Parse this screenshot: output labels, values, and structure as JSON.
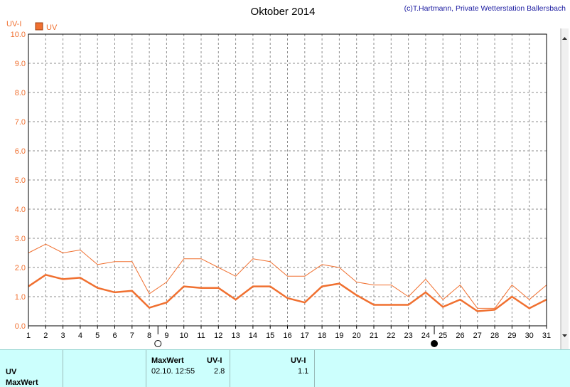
{
  "chart_data": {
    "type": "line",
    "title": "Oktober 2014",
    "copyright": "(c)T.Hartmann, Private Wetterstation Ballersbach",
    "ylabel": "UV-I",
    "legend": "UV",
    "legend_position": "top-left",
    "grid": true,
    "ylim": [
      0,
      10
    ],
    "yticks": [
      "0.0",
      "1.0",
      "2.0",
      "3.0",
      "4.0",
      "5.0",
      "6.0",
      "7.0",
      "8.0",
      "9.0",
      "10.0"
    ],
    "x": [
      1,
      2,
      3,
      4,
      5,
      6,
      7,
      8,
      9,
      10,
      11,
      12,
      13,
      14,
      15,
      16,
      17,
      18,
      19,
      20,
      21,
      22,
      23,
      24,
      25,
      26,
      27,
      28,
      29,
      30,
      31
    ],
    "series": [
      {
        "name": "UV",
        "values": [
          1.35,
          1.75,
          1.6,
          1.65,
          1.3,
          1.15,
          1.2,
          0.62,
          0.8,
          1.35,
          1.3,
          1.3,
          0.9,
          1.35,
          1.35,
          0.95,
          0.8,
          1.35,
          1.45,
          1.05,
          0.72,
          0.72,
          0.72,
          1.15,
          0.65,
          0.9,
          0.5,
          0.55,
          1.0,
          0.6,
          0.9
        ]
      },
      {
        "name": "MaxWert",
        "values": [
          2.5,
          2.8,
          2.5,
          2.6,
          2.1,
          2.2,
          2.2,
          1.1,
          1.5,
          2.3,
          2.3,
          2.0,
          1.7,
          2.3,
          2.2,
          1.7,
          1.7,
          2.1,
          2.0,
          1.5,
          1.4,
          1.4,
          1.0,
          1.6,
          0.9,
          1.4,
          0.6,
          0.6,
          1.4,
          0.9,
          1.4
        ]
      }
    ],
    "moon_phases": [
      {
        "day": 8,
        "phase": "full"
      },
      {
        "day": 24,
        "phase": "new"
      }
    ],
    "colors": {
      "series": "#f07030",
      "axis_text": "#f07030",
      "grid": "#8c8c8c"
    }
  },
  "footer": {
    "row1_label": "UV",
    "row2_label": "MaxWert",
    "col_max_header": "MaxWert",
    "col_unit_header": "UV-I",
    "max_datetime": "02.10.  12:55",
    "max_value": "2.8",
    "col2_unit_header": "UV-I",
    "avg_value": "1.1"
  }
}
